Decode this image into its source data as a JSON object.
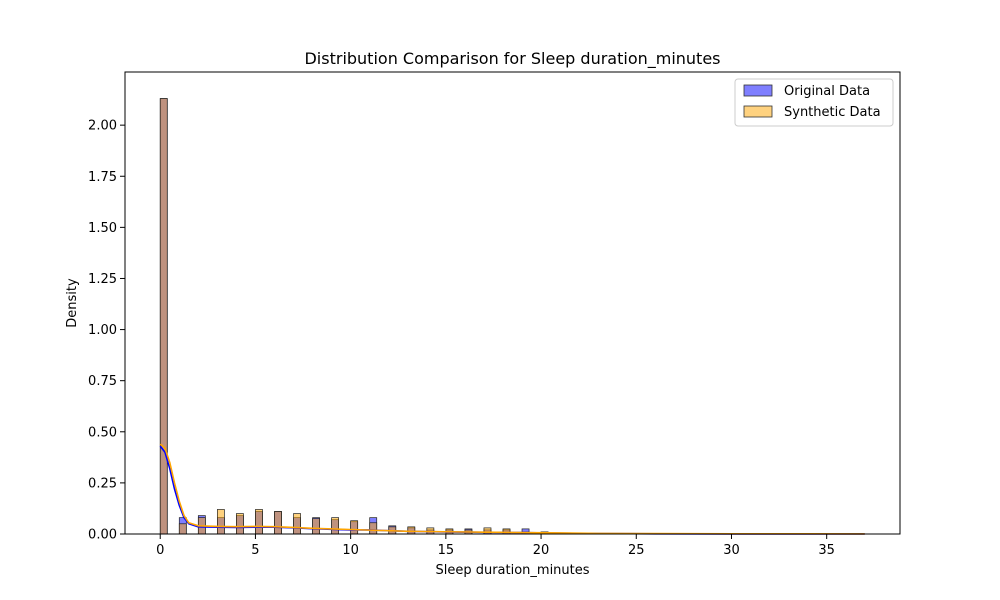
{
  "chart_data": {
    "type": "histogram",
    "title": "Distribution Comparison for Sleep duration_minutes",
    "xlabel": "Sleep duration_minutes",
    "ylabel": "Density",
    "xlim": [
      -1.85,
      38.85
    ],
    "ylim": [
      0,
      2.26
    ],
    "xticks": [
      0,
      5,
      10,
      15,
      20,
      25,
      30,
      35
    ],
    "xtick_labels": [
      "0",
      "5",
      "10",
      "15",
      "20",
      "25",
      "30",
      "35"
    ],
    "yticks": [
      0,
      0.25,
      0.5,
      0.75,
      1.0,
      1.25,
      1.5,
      1.75,
      2.0
    ],
    "ytick_labels": [
      "0.00",
      "0.25",
      "0.50",
      "0.75",
      "1.00",
      "1.25",
      "1.50",
      "1.75",
      "2.00"
    ],
    "bin_width": 0.37,
    "grid": false,
    "legend_position": "upper-right",
    "series": [
      {
        "name": "Original Data",
        "color": "#0000ff",
        "bins": [
          {
            "x": 0,
            "density": 2.13
          },
          {
            "x": 1,
            "density": 0.08
          },
          {
            "x": 2,
            "density": 0.09
          },
          {
            "x": 3,
            "density": 0.08
          },
          {
            "x": 4,
            "density": 0.09
          },
          {
            "x": 5,
            "density": 0.11
          },
          {
            "x": 6,
            "density": 0.11
          },
          {
            "x": 7,
            "density": 0.08
          },
          {
            "x": 8,
            "density": 0.08
          },
          {
            "x": 9,
            "density": 0.07
          },
          {
            "x": 10,
            "density": 0.06
          },
          {
            "x": 11,
            "density": 0.08
          },
          {
            "x": 12,
            "density": 0.04
          },
          {
            "x": 13,
            "density": 0.03
          },
          {
            "x": 14,
            "density": 0.02
          },
          {
            "x": 15,
            "density": 0.02
          },
          {
            "x": 16,
            "density": 0.025
          },
          {
            "x": 17,
            "density": 0.02
          },
          {
            "x": 18,
            "density": 0.02
          },
          {
            "x": 19,
            "density": 0.025
          },
          {
            "x": 20,
            "density": 0.01
          }
        ],
        "kde": [
          [
            0,
            0.43
          ],
          [
            0.25,
            0.4
          ],
          [
            0.5,
            0.32
          ],
          [
            0.75,
            0.22
          ],
          [
            1,
            0.14
          ],
          [
            1.25,
            0.08
          ],
          [
            1.5,
            0.05
          ],
          [
            2,
            0.035
          ],
          [
            3,
            0.033
          ],
          [
            4,
            0.032
          ],
          [
            5,
            0.033
          ],
          [
            6,
            0.033
          ],
          [
            7,
            0.03
          ],
          [
            8,
            0.026
          ],
          [
            9,
            0.023
          ],
          [
            10,
            0.02
          ],
          [
            11,
            0.02
          ],
          [
            12,
            0.016
          ],
          [
            13,
            0.013
          ],
          [
            15,
            0.01
          ],
          [
            17,
            0.008
          ],
          [
            19,
            0.007
          ],
          [
            21,
            0.004
          ],
          [
            23,
            0.002
          ],
          [
            26,
            0.001
          ],
          [
            30,
            0.0005
          ],
          [
            34,
            0.0003
          ],
          [
            37,
            0.0002
          ]
        ]
      },
      {
        "name": "Synthetic Data",
        "color": "#ffa500",
        "bins": [
          {
            "x": 0,
            "density": 2.13
          },
          {
            "x": 1,
            "density": 0.05
          },
          {
            "x": 2,
            "density": 0.08
          },
          {
            "x": 3,
            "density": 0.12
          },
          {
            "x": 4,
            "density": 0.1
          },
          {
            "x": 5,
            "density": 0.12
          },
          {
            "x": 6,
            "density": 0.11
          },
          {
            "x": 7,
            "density": 0.1
          },
          {
            "x": 8,
            "density": 0.075
          },
          {
            "x": 9,
            "density": 0.08
          },
          {
            "x": 10,
            "density": 0.065
          },
          {
            "x": 11,
            "density": 0.055
          },
          {
            "x": 12,
            "density": 0.035
          },
          {
            "x": 13,
            "density": 0.035
          },
          {
            "x": 14,
            "density": 0.03
          },
          {
            "x": 15,
            "density": 0.025
          },
          {
            "x": 16,
            "density": 0.02
          },
          {
            "x": 17,
            "density": 0.03
          },
          {
            "x": 18,
            "density": 0.025
          },
          {
            "x": 19,
            "density": 0.01
          },
          {
            "x": 20,
            "density": 0.01
          }
        ],
        "kde": [
          [
            0,
            0.44
          ],
          [
            0.25,
            0.42
          ],
          [
            0.5,
            0.35
          ],
          [
            0.75,
            0.25
          ],
          [
            1,
            0.16
          ],
          [
            1.25,
            0.09
          ],
          [
            1.5,
            0.055
          ],
          [
            2,
            0.04
          ],
          [
            3,
            0.037
          ],
          [
            4,
            0.036
          ],
          [
            5,
            0.037
          ],
          [
            6,
            0.036
          ],
          [
            7,
            0.032
          ],
          [
            8,
            0.028
          ],
          [
            9,
            0.025
          ],
          [
            10,
            0.022
          ],
          [
            11,
            0.019
          ],
          [
            12,
            0.016
          ],
          [
            13,
            0.013
          ],
          [
            15,
            0.011
          ],
          [
            17,
            0.009
          ],
          [
            19,
            0.007
          ],
          [
            21,
            0.005
          ],
          [
            23,
            0.003
          ],
          [
            26,
            0.002
          ],
          [
            30,
            0.001
          ],
          [
            34,
            0.0008
          ],
          [
            37,
            0.0005
          ]
        ]
      }
    ]
  }
}
